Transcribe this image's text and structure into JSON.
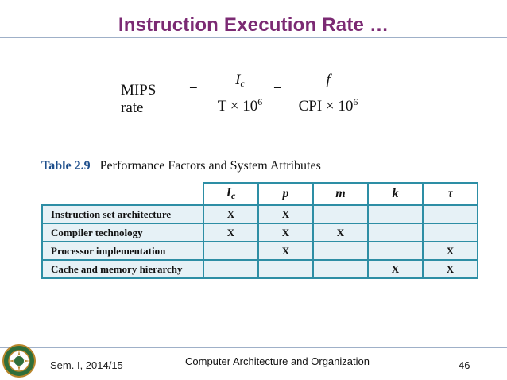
{
  "title": "Instruction Execution Rate …",
  "formula": {
    "lhs": "MIPS rate",
    "eq": "=",
    "frac1_num": "I",
    "frac1_num_sub": "c",
    "frac1_den_pre": "T × 10",
    "frac1_den_exp": "6",
    "frac2_num": "f",
    "frac2_den_pre": "CPI × 10",
    "frac2_den_exp": "6"
  },
  "table": {
    "caption_number": "Table 2.9",
    "caption_text": "Performance Factors and System Attributes",
    "headers": [
      {
        "main": "I",
        "sub": "c"
      },
      {
        "main": "p",
        "sub": ""
      },
      {
        "main": "m",
        "sub": ""
      },
      {
        "main": "k",
        "sub": ""
      },
      {
        "main": "τ",
        "sub": ""
      }
    ],
    "rows": [
      {
        "label": "Instruction set architecture",
        "cells": [
          "X",
          "X",
          "",
          "",
          ""
        ]
      },
      {
        "label": "Compiler technology",
        "cells": [
          "X",
          "X",
          "X",
          "",
          ""
        ]
      },
      {
        "label": "Processor implementation",
        "cells": [
          "",
          "X",
          "",
          "",
          "X"
        ]
      },
      {
        "label": "Cache and memory hierarchy",
        "cells": [
          "",
          "",
          "",
          "X",
          "X"
        ]
      }
    ]
  },
  "footer": {
    "left": "Sem. I, 2014/15",
    "center": "Computer Architecture and Organization",
    "page": "46"
  },
  "colors": {
    "title": "#7b2a73",
    "table_border": "#2d8ea5",
    "row_fill": "#e6f1f6"
  }
}
